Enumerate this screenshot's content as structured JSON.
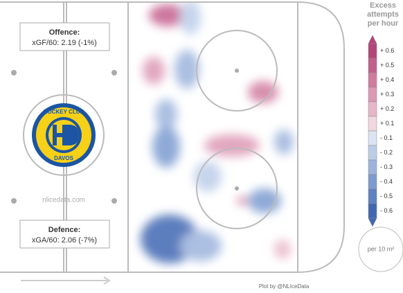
{
  "offence": {
    "title": "Offence:",
    "stat": "xGF/60: 2.19 (-1%)"
  },
  "defence": {
    "title": "Defence:",
    "stat": "xGA/60: 2.06 (-7%)"
  },
  "logo": {
    "top": "HOCKEY CLUB",
    "bottom": "DAVOS"
  },
  "watermark": "nlicedata.com",
  "credit": "Plot by @NLIceData",
  "legend": {
    "title": [
      "Excess",
      "attempts",
      "per hour"
    ],
    "unit": "per 10 m²",
    "items": [
      {
        "label": "+ 0.6",
        "color": "#b5447a"
      },
      {
        "label": "+ 0.5",
        "color": "#c45e8c"
      },
      {
        "label": "+ 0.4",
        "color": "#d17b9f"
      },
      {
        "label": "+ 0.3",
        "color": "#dd98b3"
      },
      {
        "label": "+ 0.2",
        "color": "#e8b6c8"
      },
      {
        "label": "+ 0.1",
        "color": "#f3d6df"
      },
      {
        "label": "- 0.1",
        "color": "#dbe4f2"
      },
      {
        "label": "- 0.2",
        "color": "#bccde9"
      },
      {
        "label": "- 0.3",
        "color": "#9cb4dd"
      },
      {
        "label": "- 0.4",
        "color": "#7c9bd0"
      },
      {
        "label": "- 0.5",
        "color": "#5e82c2"
      },
      {
        "label": "- 0.6",
        "color": "#4168b2"
      }
    ]
  }
}
